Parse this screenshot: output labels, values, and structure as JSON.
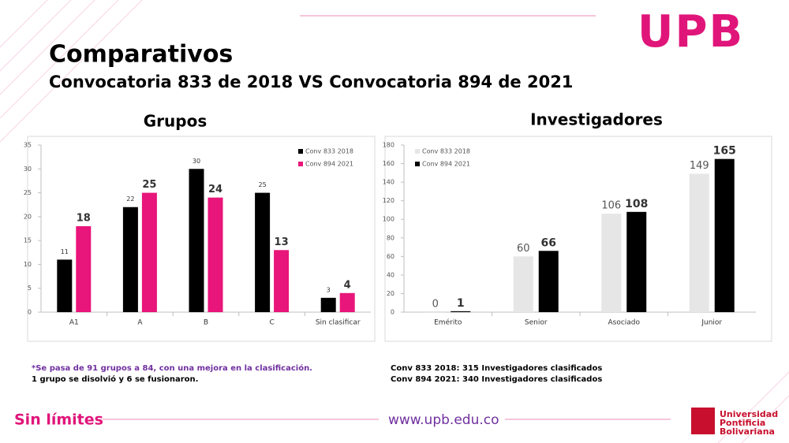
{
  "title": "Comparativos",
  "subtitle": "Convocatoria 833 de 2018 VS Convocatoria 894 de 2021",
  "chart_data": [
    {
      "type": "bar",
      "title": "Grupos",
      "categories": [
        "A1",
        "A",
        "B",
        "C",
        "Sin clasificar"
      ],
      "series": [
        {
          "name": "Conv 833 2018",
          "color": "#000000",
          "values": [
            11,
            22,
            30,
            25,
            3
          ]
        },
        {
          "name": "Conv 894 2021",
          "color": "#e8157a",
          "values": [
            18,
            25,
            24,
            13,
            4
          ]
        }
      ],
      "ylim": [
        0,
        35
      ],
      "yticks": [
        0,
        5,
        10,
        15,
        20,
        25,
        30,
        35
      ],
      "legend": "upper right"
    },
    {
      "type": "bar",
      "title": "Investigadores",
      "categories": [
        "Emérito",
        "Senior",
        "Asociado",
        "Junior"
      ],
      "series": [
        {
          "name": "Conv 833 2018",
          "color": "#e6e6e6",
          "values": [
            0,
            60,
            106,
            149
          ]
        },
        {
          "name": "Conv 894 2021",
          "color": "#000000",
          "values": [
            1,
            66,
            108,
            165
          ]
        }
      ],
      "ylim": [
        0,
        180
      ],
      "yticks": [
        0,
        20,
        40,
        60,
        80,
        100,
        120,
        140,
        160,
        180
      ],
      "legend": "upper left"
    }
  ],
  "notes_left": [
    "*Se pasa de 91 grupos a 84, con una mejora en la clasificación.",
    "1 grupo se disolvió y 6 se fusionaron."
  ],
  "notes_right": [
    "Conv 833 2018: 315 Investigadores clasificados",
    "Conv 894 2021: 340 Investigadores clasificados"
  ],
  "footer": {
    "slogan": "Sin límites",
    "url": "www.upb.edu.co",
    "logo": "UPB",
    "university": [
      "Universidad",
      "Pontificia",
      "Bolivariana"
    ]
  }
}
